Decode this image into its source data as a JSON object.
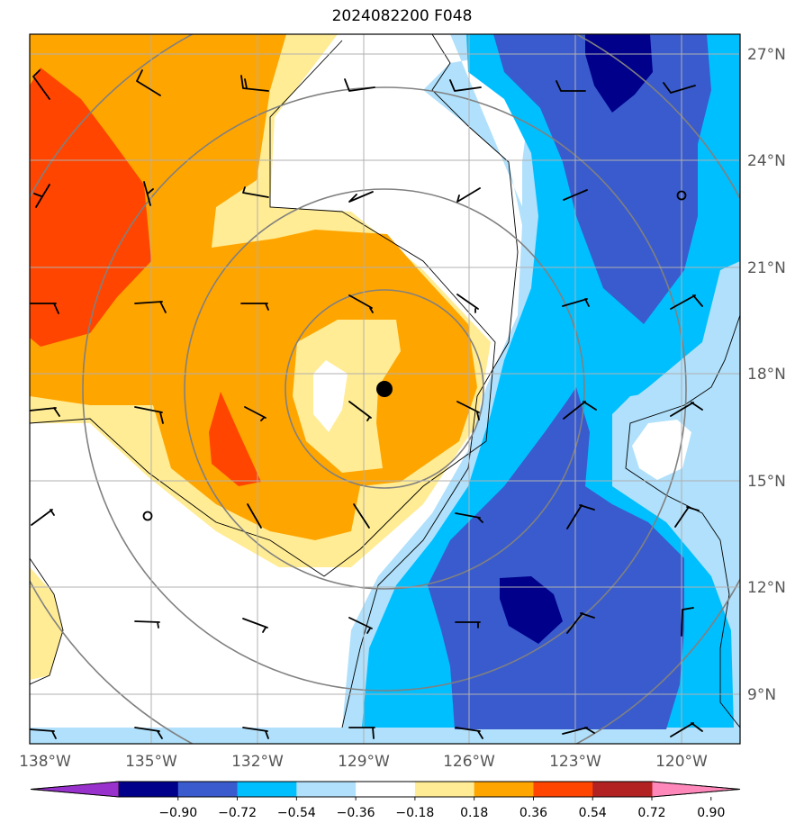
{
  "title": "2024082200 F048",
  "x_ticks": [
    "138°W",
    "135°W",
    "132°W",
    "129°W",
    "126°W",
    "123°W",
    "120°W"
  ],
  "y_ticks": [
    "27°N",
    "24°N",
    "21°N",
    "18°N",
    "15°N",
    "12°N",
    "9°N"
  ],
  "colorbar": {
    "colors": [
      "#9932cc",
      "#00008b",
      "#3a5bcd",
      "#00bfff",
      "#b0e0fb",
      "#ffffff",
      "#ffec94",
      "#ffa500",
      "#ff4500",
      "#b22222",
      "#ff88bb"
    ],
    "labels": [
      "−0.90",
      "−0.72",
      "−0.54",
      "−0.36",
      "−0.18",
      "0.18",
      "0.36",
      "0.54",
      "0.72",
      "0.90"
    ]
  },
  "storm_center": {
    "lon": -128.4,
    "lat": 17.6
  },
  "low_markers": [
    {
      "lon": -120.0,
      "lat": 23.0
    },
    {
      "lon": -135.0,
      "lat": 14.0
    }
  ]
}
